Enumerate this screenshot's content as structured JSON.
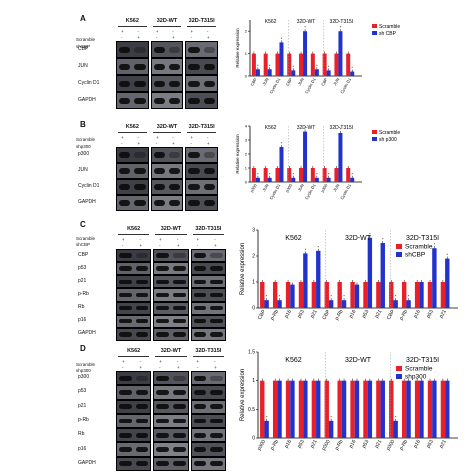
{
  "panels": [
    {
      "id": "A",
      "conditions": [
        "K562",
        "32D-WT",
        "32D-T315I"
      ],
      "treatments": [
        {
          "name": "Scramble",
          "marks": [
            "+",
            "-",
            "+",
            "-",
            "+",
            "-"
          ]
        },
        {
          "name": "shCBP",
          "marks": [
            "-",
            "+",
            "-",
            "+",
            "-",
            "+"
          ]
        }
      ],
      "rows": [
        "CBP",
        "JUN",
        "Cyclin D1",
        "GAPDH"
      ]
    },
    {
      "id": "B",
      "conditions": [
        "K562",
        "32D-WT",
        "32D-T315I"
      ],
      "treatments": [
        {
          "name": "Scramble",
          "marks": [
            "+",
            "-",
            "+",
            "-",
            "+",
            "-"
          ]
        },
        {
          "name": "shp300",
          "marks": [
            "-",
            "+",
            "-",
            "+",
            "-",
            "+"
          ]
        }
      ],
      "rows": [
        "p300",
        "JUN",
        "Cyclin D1",
        "GAPDH"
      ]
    },
    {
      "id": "C",
      "conditions": [
        "K562",
        "32D-WT",
        "32D-T315I"
      ],
      "treatments": [
        {
          "name": "Scramble",
          "marks": [
            "+",
            "-",
            "+",
            "-",
            "+",
            "-"
          ]
        },
        {
          "name": "shCBP",
          "marks": [
            "-",
            "+",
            "-",
            "+",
            "-",
            "+"
          ]
        }
      ],
      "rows": [
        "CBP",
        "p53",
        "p21",
        "p-Rb",
        "Rb",
        "p16",
        "GAPDH"
      ]
    },
    {
      "id": "D",
      "conditions": [
        "K562",
        "32D-WT",
        "32D-T315I"
      ],
      "treatments": [
        {
          "name": "Scramble",
          "marks": [
            "+",
            "-",
            "+",
            "-",
            "+",
            "-"
          ]
        },
        {
          "name": "shp300",
          "marks": [
            "-",
            "+",
            "-",
            "+",
            "-",
            "+"
          ]
        }
      ],
      "rows": [
        "p300",
        "p53",
        "p21",
        "p-Rb",
        "Rb",
        "p16",
        "GAPDH"
      ]
    }
  ],
  "chart_data": [
    {
      "panel": "A",
      "type": "bar",
      "groups": [
        "K562",
        "32D-WT",
        "32D-T315I"
      ],
      "categories": [
        "CBP",
        "JUN",
        "Cyclin D1",
        "CBP",
        "JUN",
        "Cyclin D1",
        "CBP",
        "JUN",
        "Cyclin D1"
      ],
      "series": [
        {
          "name": "Scramble",
          "color": "#e8202a",
          "values": [
            1,
            1,
            1,
            1,
            1,
            1,
            1,
            1,
            1
          ]
        },
        {
          "name": "sh CBP",
          "color": "#2233cc",
          "values": [
            0.3,
            0.3,
            1.5,
            0.25,
            2.0,
            0.3,
            0.25,
            2.0,
            0.2
          ]
        }
      ],
      "ylabel": "Relative expression",
      "ylim": [
        0,
        2.5
      ],
      "legend": "top-right"
    },
    {
      "panel": "B",
      "type": "bar",
      "groups": [
        "K562",
        "32D-WT",
        "32D-T315I"
      ],
      "categories": [
        "p300",
        "JUN",
        "Cyclin D1",
        "p300",
        "JUN",
        "Cyclin D1",
        "p300",
        "JUN",
        "Cyclin D1"
      ],
      "series": [
        {
          "name": "Scramble",
          "color": "#e8202a",
          "values": [
            1,
            1,
            1,
            1,
            1,
            1,
            1,
            1,
            1
          ]
        },
        {
          "name": "sh p300",
          "color": "#2233cc",
          "values": [
            0.3,
            0.3,
            2.5,
            0.3,
            3.6,
            0.3,
            0.3,
            3.5,
            0.3
          ]
        }
      ],
      "ylabel": "Relative expression",
      "ylim": [
        0,
        4
      ],
      "legend": "top-right"
    },
    {
      "panel": "C",
      "type": "bar",
      "groups": [
        "K562",
        "32D-WT",
        "32D-T315I"
      ],
      "categories": [
        "CBP",
        "p-Rb",
        "p16",
        "p53",
        "p21",
        "CBP",
        "p-Rb",
        "p16",
        "p53",
        "p21",
        "CBP",
        "p-Rb",
        "p16",
        "p53",
        "p21"
      ],
      "series": [
        {
          "name": "Scramble",
          "color": "#e8202a",
          "values": [
            1,
            1,
            1,
            1,
            1,
            1,
            1,
            1,
            1,
            1,
            1,
            1,
            1,
            1,
            1
          ]
        },
        {
          "name": "shCBP",
          "color": "#2233cc",
          "values": [
            0.3,
            0.3,
            0.9,
            2.1,
            2.2,
            0.3,
            0.3,
            0.9,
            2.7,
            2.5,
            0.3,
            0.3,
            1.0,
            2.3,
            1.9
          ]
        }
      ],
      "ylabel": "Relative expression",
      "ylim": [
        0,
        3
      ],
      "legend": "top-right"
    },
    {
      "panel": "D",
      "type": "bar",
      "groups": [
        "K562",
        "32D-WT",
        "32D-T315I"
      ],
      "categories": [
        "p300",
        "p-Rb",
        "p16",
        "p53",
        "p21",
        "p300",
        "p-Rb",
        "p16",
        "p53",
        "p21",
        "p300",
        "p-Rb",
        "p16",
        "p53",
        "p21"
      ],
      "series": [
        {
          "name": "Scramble",
          "color": "#e8202a",
          "values": [
            1,
            1,
            1,
            1,
            1,
            1,
            1,
            1,
            1,
            1,
            1,
            1,
            1,
            1,
            1
          ]
        },
        {
          "name": "shp300",
          "color": "#2233cc",
          "values": [
            0.3,
            1.0,
            1.0,
            1.0,
            1.0,
            0.3,
            1.0,
            1.0,
            1.0,
            1.0,
            0.3,
            1.0,
            1.0,
            1.0,
            1.0
          ]
        }
      ],
      "ylabel": "Relative expression",
      "ylim": [
        0,
        1.5
      ],
      "legend": "top-right"
    }
  ]
}
